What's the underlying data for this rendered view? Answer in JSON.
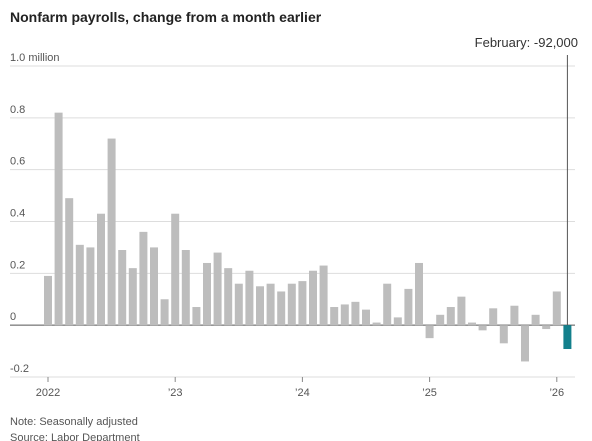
{
  "chart_data": {
    "type": "bar",
    "title": "Nonfarm payrolls, change from a month earlier",
    "categories": [
      "2022",
      null,
      null,
      null,
      null,
      null,
      null,
      null,
      null,
      null,
      null,
      null,
      "’23",
      null,
      null,
      null,
      null,
      null,
      null,
      null,
      null,
      null,
      null,
      null,
      "’24",
      null,
      null,
      null,
      null,
      null,
      null,
      null,
      null,
      null,
      null,
      null,
      "’25",
      null,
      null,
      null,
      null,
      null,
      null,
      null,
      null,
      null,
      null,
      null,
      "’26",
      null
    ],
    "values": [
      0.19,
      0.82,
      0.49,
      0.31,
      0.3,
      0.43,
      0.72,
      0.29,
      0.22,
      0.36,
      0.3,
      0.1,
      0.43,
      0.29,
      0.07,
      0.24,
      0.28,
      0.22,
      0.16,
      0.21,
      0.15,
      0.16,
      0.13,
      0.16,
      0.17,
      0.21,
      0.23,
      0.07,
      0.08,
      0.09,
      0.06,
      0.01,
      0.16,
      0.03,
      0.14,
      0.24,
      -0.05,
      0.04,
      0.07,
      0.11,
      0.01,
      -0.02,
      0.065,
      -0.07,
      0.075,
      -0.14,
      0.04,
      -0.015,
      0.13,
      -0.092
    ],
    "color": "#bdbdbd",
    "highlight": {
      "index": 49,
      "color": "#13808c",
      "label": "February: -92,000"
    },
    "ylim": [
      -0.2,
      1.0
    ],
    "yticks": [
      -0.2,
      0,
      0.2,
      0.4,
      0.6,
      0.8,
      {
        "value": 1.0,
        "label": "1.0 million"
      }
    ],
    "grid": true,
    "notes": [
      "Note: Seasonally adjusted",
      "Source: Labor Department"
    ]
  }
}
